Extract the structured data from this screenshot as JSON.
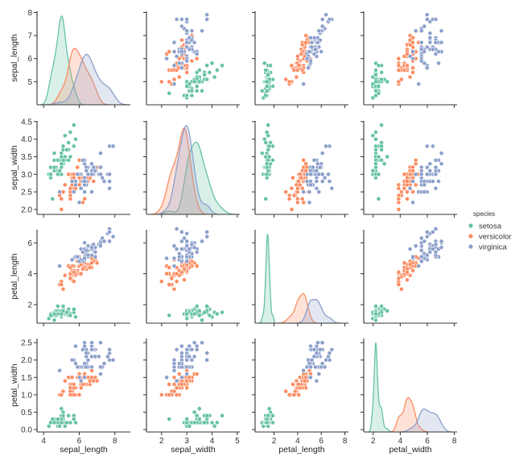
{
  "chart_data": {
    "type": "scatter",
    "kind": "pairplot",
    "diagonal": "kde",
    "variables": [
      "sepal_length",
      "sepal_width",
      "petal_length",
      "petal_width"
    ],
    "axis_ticks": {
      "sepal_length": [
        "4",
        "6",
        "8"
      ],
      "sepal_width": [
        "2",
        "3",
        "4",
        "5"
      ],
      "petal_length": [
        "2",
        "4",
        "6",
        "8"
      ],
      "petal_width": [
        "2",
        "4",
        "6",
        "8"
      ]
    },
    "row_ticks": {
      "sepal_length": [
        "5",
        "6",
        "7",
        "8"
      ],
      "sepal_width": [
        "2.0",
        "2.5",
        "3.0",
        "3.5",
        "4.0",
        "4.5"
      ],
      "petal_length": [
        "2",
        "4",
        "6"
      ],
      "petal_width": [
        "0.0",
        "0.5",
        "1.0",
        "1.5",
        "2.0",
        "2.5"
      ]
    },
    "grid": false,
    "legend": {
      "title": "species",
      "placement": "right",
      "entries": [
        "setosa",
        "versicolor",
        "virginica"
      ]
    },
    "colors": {
      "setosa": "#66c2a5",
      "versicolor": "#fc8d62",
      "virginica": "#8da0cb"
    },
    "columns": [
      "sepal_length",
      "sepal_width",
      "petal_length",
      "petal_width"
    ],
    "series": [
      {
        "name": "setosa",
        "rows": [
          [
            5.1,
            3.5,
            1.4,
            0.2
          ],
          [
            4.9,
            3.0,
            1.4,
            0.2
          ],
          [
            4.7,
            3.2,
            1.3,
            0.2
          ],
          [
            4.6,
            3.1,
            1.5,
            0.2
          ],
          [
            5.0,
            3.6,
            1.4,
            0.2
          ],
          [
            5.4,
            3.9,
            1.7,
            0.4
          ],
          [
            4.6,
            3.4,
            1.4,
            0.3
          ],
          [
            5.0,
            3.4,
            1.5,
            0.2
          ],
          [
            4.4,
            2.9,
            1.4,
            0.2
          ],
          [
            4.9,
            3.1,
            1.5,
            0.1
          ],
          [
            5.4,
            3.7,
            1.5,
            0.2
          ],
          [
            4.8,
            3.4,
            1.6,
            0.2
          ],
          [
            4.8,
            3.0,
            1.4,
            0.1
          ],
          [
            4.3,
            3.0,
            1.1,
            0.1
          ],
          [
            5.8,
            4.0,
            1.2,
            0.2
          ],
          [
            5.7,
            4.4,
            1.5,
            0.4
          ],
          [
            5.4,
            3.9,
            1.3,
            0.4
          ],
          [
            5.1,
            3.5,
            1.4,
            0.3
          ],
          [
            5.7,
            3.8,
            1.7,
            0.3
          ],
          [
            5.1,
            3.8,
            1.5,
            0.3
          ],
          [
            5.4,
            3.4,
            1.7,
            0.2
          ],
          [
            5.1,
            3.7,
            1.5,
            0.4
          ],
          [
            4.6,
            3.6,
            1.0,
            0.2
          ],
          [
            5.1,
            3.3,
            1.7,
            0.5
          ],
          [
            4.8,
            3.4,
            1.9,
            0.2
          ],
          [
            5.0,
            3.0,
            1.6,
            0.2
          ],
          [
            5.0,
            3.4,
            1.6,
            0.4
          ],
          [
            5.2,
            3.5,
            1.5,
            0.2
          ],
          [
            5.2,
            3.4,
            1.4,
            0.2
          ],
          [
            4.7,
            3.2,
            1.6,
            0.2
          ],
          [
            4.8,
            3.1,
            1.6,
            0.2
          ],
          [
            5.4,
            3.4,
            1.5,
            0.4
          ],
          [
            5.2,
            4.1,
            1.5,
            0.1
          ],
          [
            5.5,
            4.2,
            1.4,
            0.2
          ],
          [
            4.9,
            3.1,
            1.5,
            0.1
          ],
          [
            5.0,
            3.2,
            1.2,
            0.2
          ],
          [
            5.5,
            3.5,
            1.3,
            0.2
          ],
          [
            4.9,
            3.1,
            1.5,
            0.1
          ],
          [
            4.4,
            3.0,
            1.3,
            0.2
          ],
          [
            5.1,
            3.4,
            1.5,
            0.2
          ],
          [
            5.0,
            3.5,
            1.3,
            0.3
          ],
          [
            4.5,
            2.3,
            1.3,
            0.3
          ],
          [
            4.4,
            3.2,
            1.3,
            0.2
          ],
          [
            5.0,
            3.5,
            1.6,
            0.6
          ],
          [
            5.1,
            3.8,
            1.9,
            0.4
          ],
          [
            4.8,
            3.0,
            1.4,
            0.3
          ],
          [
            5.1,
            3.8,
            1.6,
            0.2
          ],
          [
            4.6,
            3.2,
            1.4,
            0.2
          ],
          [
            5.3,
            3.7,
            1.5,
            0.2
          ],
          [
            5.0,
            3.3,
            1.4,
            0.2
          ]
        ]
      },
      {
        "name": "versicolor",
        "rows": [
          [
            7.0,
            3.2,
            4.7,
            1.4
          ],
          [
            6.4,
            3.2,
            4.5,
            1.5
          ],
          [
            6.9,
            3.1,
            4.9,
            1.5
          ],
          [
            5.5,
            2.3,
            4.0,
            1.3
          ],
          [
            6.5,
            2.8,
            4.6,
            1.5
          ],
          [
            5.7,
            2.8,
            4.5,
            1.3
          ],
          [
            6.3,
            3.3,
            4.7,
            1.6
          ],
          [
            4.9,
            2.4,
            3.3,
            1.0
          ],
          [
            6.6,
            2.9,
            4.6,
            1.3
          ],
          [
            5.2,
            2.7,
            3.9,
            1.4
          ],
          [
            5.0,
            2.0,
            3.5,
            1.0
          ],
          [
            5.9,
            3.0,
            4.2,
            1.5
          ],
          [
            6.0,
            2.2,
            4.0,
            1.0
          ],
          [
            6.1,
            2.9,
            4.7,
            1.4
          ],
          [
            5.6,
            2.9,
            3.6,
            1.3
          ],
          [
            6.7,
            3.1,
            4.4,
            1.4
          ],
          [
            5.6,
            3.0,
            4.5,
            1.5
          ],
          [
            5.8,
            2.7,
            4.1,
            1.0
          ],
          [
            6.2,
            2.2,
            4.5,
            1.5
          ],
          [
            5.6,
            2.5,
            3.9,
            1.1
          ],
          [
            5.9,
            3.2,
            4.8,
            1.8
          ],
          [
            6.1,
            2.8,
            4.0,
            1.3
          ],
          [
            6.3,
            2.5,
            4.9,
            1.5
          ],
          [
            6.1,
            2.8,
            4.7,
            1.2
          ],
          [
            6.4,
            2.9,
            4.3,
            1.3
          ],
          [
            6.6,
            3.0,
            4.4,
            1.4
          ],
          [
            6.8,
            2.8,
            4.8,
            1.4
          ],
          [
            6.7,
            3.0,
            5.0,
            1.7
          ],
          [
            6.0,
            2.9,
            4.5,
            1.5
          ],
          [
            5.7,
            2.6,
            3.5,
            1.0
          ],
          [
            5.5,
            2.4,
            3.8,
            1.1
          ],
          [
            5.5,
            2.4,
            3.7,
            1.0
          ],
          [
            5.8,
            2.7,
            3.9,
            1.2
          ],
          [
            6.0,
            2.7,
            5.1,
            1.6
          ],
          [
            5.4,
            3.0,
            4.5,
            1.5
          ],
          [
            6.0,
            3.4,
            4.5,
            1.6
          ],
          [
            6.7,
            3.1,
            4.7,
            1.5
          ],
          [
            6.3,
            2.3,
            4.4,
            1.3
          ],
          [
            5.6,
            3.0,
            4.1,
            1.3
          ],
          [
            5.5,
            2.5,
            4.0,
            1.3
          ],
          [
            5.5,
            2.6,
            4.4,
            1.2
          ],
          [
            6.1,
            3.0,
            4.6,
            1.4
          ],
          [
            5.8,
            2.6,
            4.0,
            1.2
          ],
          [
            5.0,
            2.3,
            3.3,
            1.0
          ],
          [
            5.6,
            2.7,
            4.2,
            1.3
          ],
          [
            5.7,
            3.0,
            4.2,
            1.2
          ],
          [
            5.7,
            2.9,
            4.2,
            1.3
          ],
          [
            6.2,
            2.9,
            4.3,
            1.3
          ],
          [
            5.1,
            2.5,
            3.0,
            1.1
          ],
          [
            5.7,
            2.8,
            4.1,
            1.3
          ]
        ]
      },
      {
        "name": "virginica",
        "rows": [
          [
            6.3,
            3.3,
            6.0,
            2.5
          ],
          [
            5.8,
            2.7,
            5.1,
            1.9
          ],
          [
            7.1,
            3.0,
            5.9,
            2.1
          ],
          [
            6.3,
            2.9,
            5.6,
            1.8
          ],
          [
            6.5,
            3.0,
            5.8,
            2.2
          ],
          [
            7.6,
            3.0,
            6.6,
            2.1
          ],
          [
            4.9,
            2.5,
            4.5,
            1.7
          ],
          [
            7.3,
            2.9,
            6.3,
            1.8
          ],
          [
            6.7,
            2.5,
            5.8,
            1.8
          ],
          [
            7.2,
            3.6,
            6.1,
            2.5
          ],
          [
            6.5,
            3.2,
            5.1,
            2.0
          ],
          [
            6.4,
            2.7,
            5.3,
            1.9
          ],
          [
            6.8,
            3.0,
            5.5,
            2.1
          ],
          [
            5.7,
            2.5,
            5.0,
            2.0
          ],
          [
            5.8,
            2.8,
            5.1,
            2.4
          ],
          [
            6.4,
            3.2,
            5.3,
            2.3
          ],
          [
            6.5,
            3.0,
            5.5,
            1.8
          ],
          [
            7.7,
            3.8,
            6.7,
            2.2
          ],
          [
            7.7,
            2.6,
            6.9,
            2.3
          ],
          [
            6.0,
            2.2,
            5.0,
            1.5
          ],
          [
            6.9,
            3.2,
            5.7,
            2.3
          ],
          [
            5.6,
            2.8,
            4.9,
            2.0
          ],
          [
            7.7,
            2.8,
            6.7,
            2.0
          ],
          [
            6.3,
            2.7,
            4.9,
            1.8
          ],
          [
            6.7,
            3.3,
            5.7,
            2.1
          ],
          [
            7.2,
            3.2,
            6.0,
            1.8
          ],
          [
            6.2,
            2.8,
            4.8,
            1.8
          ],
          [
            6.1,
            3.0,
            4.9,
            1.8
          ],
          [
            6.4,
            2.8,
            5.6,
            2.1
          ],
          [
            7.2,
            3.0,
            5.8,
            1.6
          ],
          [
            7.4,
            2.8,
            6.1,
            1.9
          ],
          [
            7.9,
            3.8,
            6.4,
            2.0
          ],
          [
            6.4,
            2.8,
            5.6,
            2.2
          ],
          [
            6.3,
            2.8,
            5.1,
            1.5
          ],
          [
            6.1,
            2.6,
            5.6,
            1.4
          ],
          [
            7.7,
            3.0,
            6.1,
            2.3
          ],
          [
            6.3,
            3.4,
            5.6,
            2.4
          ],
          [
            6.4,
            3.1,
            5.5,
            1.8
          ],
          [
            6.0,
            3.0,
            4.8,
            1.8
          ],
          [
            6.9,
            3.1,
            5.4,
            2.1
          ],
          [
            6.7,
            3.1,
            5.6,
            2.4
          ],
          [
            6.9,
            3.1,
            5.1,
            2.3
          ],
          [
            5.8,
            2.7,
            5.1,
            1.9
          ],
          [
            6.8,
            3.2,
            5.9,
            2.3
          ],
          [
            6.7,
            3.3,
            5.7,
            2.5
          ],
          [
            6.7,
            3.0,
            5.2,
            2.3
          ],
          [
            6.3,
            2.5,
            5.0,
            1.9
          ],
          [
            6.5,
            3.0,
            5.2,
            2.0
          ],
          [
            6.2,
            3.4,
            5.4,
            2.3
          ],
          [
            5.9,
            3.0,
            5.1,
            1.8
          ]
        ]
      }
    ]
  }
}
